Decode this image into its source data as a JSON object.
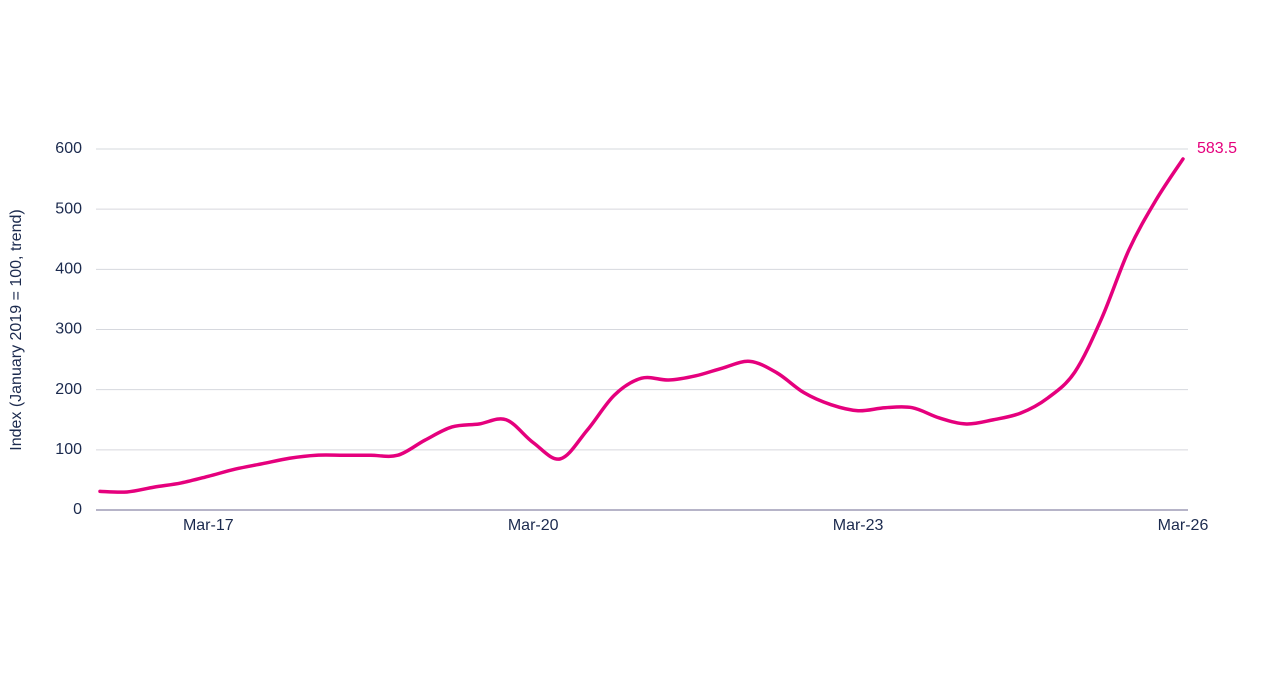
{
  "chart_data": {
    "type": "line",
    "y_label": "Index (January 2019 = 100, trend)",
    "categories": [
      null,
      null,
      null,
      null,
      "Mar-17",
      null,
      null,
      null,
      null,
      null,
      null,
      null,
      null,
      null,
      null,
      null,
      "Mar-20",
      null,
      null,
      null,
      null,
      null,
      null,
      null,
      null,
      null,
      null,
      null,
      "Mar-23",
      null,
      null,
      null,
      null,
      null,
      null,
      null,
      null,
      null,
      null,
      null,
      "Mar-26"
    ],
    "series": [
      {
        "color": "#e5007d",
        "values": [
          31,
          30,
          38,
          45,
          56,
          68,
          77,
          86,
          91,
          91,
          91,
          91,
          116,
          138,
          143,
          150,
          112,
          85,
          133,
          191,
          219,
          216,
          223,
          236,
          247,
          228,
          195,
          175,
          165,
          170,
          170,
          153,
          143,
          150,
          161,
          186,
          229,
          319,
          432,
          515,
          583.5
        ]
      }
    ],
    "ylim": [
      0,
      600
    ],
    "yticks": [
      0,
      100,
      200,
      300,
      400,
      500,
      600
    ],
    "grid": true
  }
}
